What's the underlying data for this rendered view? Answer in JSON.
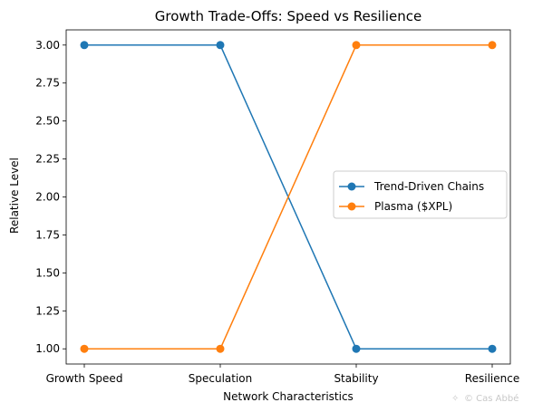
{
  "chart_data": {
    "type": "line",
    "title": "Growth Trade-Offs: Speed vs Resilience",
    "xlabel": "Network Characteristics",
    "ylabel": "Relative Level",
    "categories": [
      "Growth Speed",
      "Speculation",
      "Stability",
      "Resilience"
    ],
    "ylim": [
      0.9,
      3.1
    ],
    "yticks": [
      "1.00",
      "1.25",
      "1.50",
      "1.75",
      "2.00",
      "2.25",
      "2.50",
      "2.75",
      "3.00"
    ],
    "grid": false,
    "legend_position": "center-right",
    "series": [
      {
        "name": "Trend-Driven Chains",
        "color": "#1f77b4",
        "values": [
          3,
          3,
          1,
          1
        ]
      },
      {
        "name": "Plasma ($XPL)",
        "color": "#ff7f0e",
        "values": [
          1,
          1,
          3,
          3
        ]
      }
    ]
  },
  "watermark": "© Cas Abbé",
  "watermark_icon": "sparkle-icon"
}
